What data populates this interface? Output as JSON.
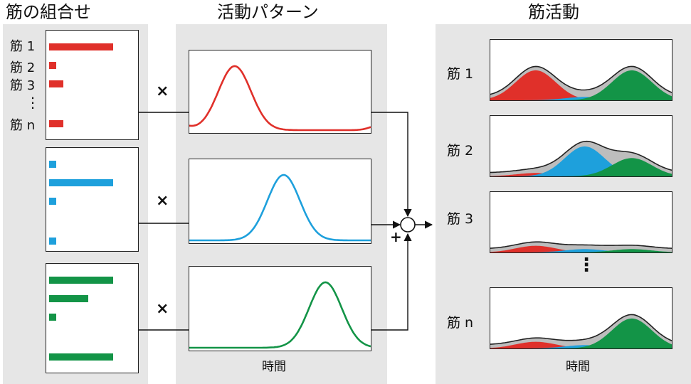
{
  "titles": {
    "combination": "筋の組合せ",
    "pattern": "活動パターン",
    "activity": "筋活動"
  },
  "colors": {
    "red": "#e0302a",
    "blue": "#1ea0dc",
    "green": "#139447",
    "gray": "#bdbdbd"
  },
  "combination_labels": {
    "m1": "筋 1",
    "m2": "筋 2",
    "m3": "筋 3",
    "vdots": "⋮",
    "mn": "筋 n"
  },
  "synergies": [
    {
      "color": "red",
      "weights": [
        0.9,
        0.1,
        0.2,
        0.2
      ],
      "multiply": "×"
    },
    {
      "color": "blue",
      "weights": [
        0.1,
        0.9,
        0.1,
        0.1
      ],
      "multiply": "×"
    },
    {
      "color": "green",
      "weights": [
        0.9,
        0.55,
        0.1,
        0.9
      ],
      "multiply": "×"
    }
  ],
  "pattern_xlabel": "時間",
  "sum_sign": "+",
  "muscle_labels": [
    "筋 1",
    "筋 2",
    "筋 3",
    "筋 n"
  ],
  "muscle_vdots": "⋮",
  "activity_xlabel": "時間"
}
